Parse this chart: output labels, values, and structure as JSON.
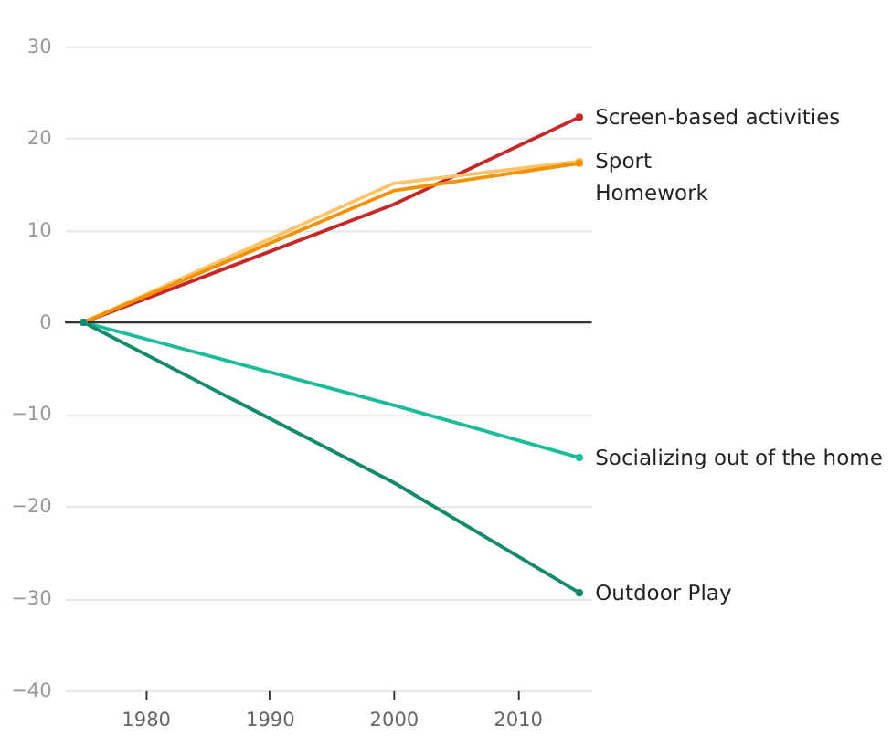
{
  "chart_data": {
    "type": "line",
    "x": [
      1975,
      2000,
      2015
    ],
    "series": [
      {
        "name": "Screen-based activities",
        "color": "#c62828",
        "values": [
          0,
          12.8,
          22.3
        ]
      },
      {
        "name": "Sport",
        "color": "#ffc36e",
        "values": [
          0,
          15.1,
          17.5
        ]
      },
      {
        "name": "Homework",
        "color": "#f39200",
        "values": [
          0,
          14.3,
          17.3
        ]
      },
      {
        "name": "Socializing out of the home",
        "color": "#1abc9c",
        "values": [
          0,
          -9.0,
          -14.7
        ]
      },
      {
        "name": "Outdoor Play",
        "color": "#138a6e",
        "values": [
          0,
          -17.4,
          -29.4
        ]
      }
    ],
    "xlim": [
      1973.5,
      2016
    ],
    "xticks": [
      1980,
      1990,
      2000,
      2010
    ],
    "ylim": [
      -40,
      30
    ],
    "yticks": [
      -40,
      -30,
      -20,
      -10,
      0,
      10,
      20,
      30
    ],
    "ref_lines": [
      {
        "axis": "y",
        "value": 0,
        "color": "#333333"
      }
    ],
    "grid": "y",
    "marker": "circle",
    "line_style": "solid"
  }
}
